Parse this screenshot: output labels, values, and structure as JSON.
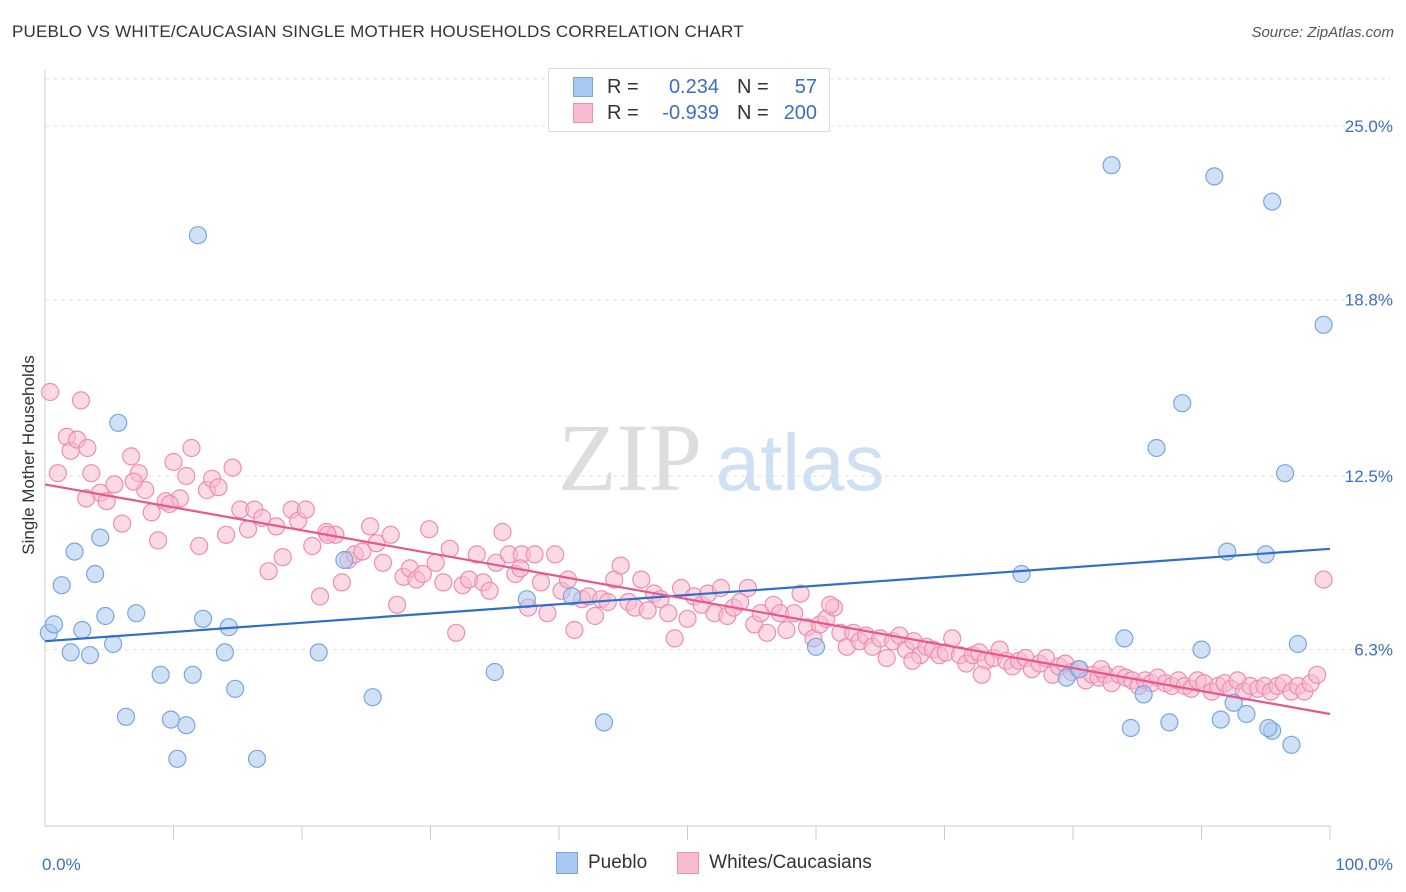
{
  "title": "PUEBLO VS WHITE/CAUCASIAN SINGLE MOTHER HOUSEHOLDS CORRELATION CHART",
  "source": "Source: ZipAtlas.com",
  "watermark": {
    "zip": "ZIP",
    "atlas": "atlas"
  },
  "legend": {
    "rows": [
      {
        "r_label": "R =",
        "r_value": "0.234",
        "n_label": "N =",
        "n_value": "57"
      },
      {
        "r_label": "R =",
        "r_value": "-0.939",
        "n_label": "N =",
        "n_value": "200"
      }
    ]
  },
  "bottom_legend": {
    "series1": "Pueblo",
    "series2": "Whites/Caucasians"
  },
  "colors": {
    "pueblo_fill": "#a9c8f0",
    "pueblo_stroke": "#7aa6de",
    "pueblo_line": "#2f6fcc",
    "white_fill": "#f7bcd0",
    "white_stroke": "#ee8db0",
    "white_line": "#e8578b",
    "tick_label": "#3b6fc4"
  },
  "chart_data": {
    "type": "scatter",
    "ylabel": "Single Mother Households",
    "xlabel": "",
    "xlim": [
      0,
      100
    ],
    "ylim": [
      0,
      27
    ],
    "x_tick_labels": [
      "0.0%",
      "100.0%"
    ],
    "y_ticks": [
      {
        "value": 6.3,
        "label": "6.3%"
      },
      {
        "value": 12.5,
        "label": "12.5%"
      },
      {
        "value": 18.8,
        "label": "18.8%"
      },
      {
        "value": 25.0,
        "label": "25.0%"
      }
    ],
    "series": [
      {
        "name": "Pueblo",
        "trend": {
          "x": [
            0,
            100
          ],
          "y": [
            6.6,
            9.9
          ]
        },
        "points": [
          [
            0.3,
            6.9
          ],
          [
            0.7,
            7.2
          ],
          [
            1.3,
            8.6
          ],
          [
            2.0,
            6.2
          ],
          [
            2.3,
            9.8
          ],
          [
            2.9,
            7.0
          ],
          [
            3.5,
            6.1
          ],
          [
            3.9,
            9.0
          ],
          [
            4.3,
            10.3
          ],
          [
            4.7,
            7.5
          ],
          [
            5.3,
            6.5
          ],
          [
            5.7,
            14.4
          ],
          [
            6.3,
            3.9
          ],
          [
            7.1,
            7.6
          ],
          [
            9.0,
            5.4
          ],
          [
            9.8,
            3.8
          ],
          [
            10.3,
            2.4
          ],
          [
            11.0,
            3.6
          ],
          [
            11.5,
            5.4
          ],
          [
            11.9,
            21.1
          ],
          [
            12.3,
            7.4
          ],
          [
            14.0,
            6.2
          ],
          [
            14.3,
            7.1
          ],
          [
            14.8,
            4.9
          ],
          [
            16.5,
            2.4
          ],
          [
            21.3,
            6.2
          ],
          [
            23.3,
            9.5
          ],
          [
            25.5,
            4.6
          ],
          [
            35.0,
            5.5
          ],
          [
            37.5,
            8.1
          ],
          [
            41.0,
            8.2
          ],
          [
            43.5,
            3.7
          ],
          [
            60.0,
            6.4
          ],
          [
            76.0,
            9.0
          ],
          [
            79.5,
            5.3
          ],
          [
            80.5,
            5.6
          ],
          [
            84.0,
            6.7
          ],
          [
            85.5,
            4.7
          ],
          [
            86.5,
            13.5
          ],
          [
            87.5,
            3.7
          ],
          [
            90.0,
            6.3
          ],
          [
            92.5,
            4.4
          ],
          [
            93.5,
            4.0
          ],
          [
            95.5,
            3.4
          ],
          [
            96.5,
            12.6
          ],
          [
            83.0,
            23.6
          ],
          [
            91.0,
            23.2
          ],
          [
            95.5,
            22.3
          ],
          [
            99.5,
            17.9
          ],
          [
            88.5,
            15.1
          ],
          [
            92.0,
            9.8
          ],
          [
            95.0,
            9.7
          ],
          [
            97.5,
            6.5
          ],
          [
            84.5,
            3.5
          ],
          [
            95.2,
            3.5
          ],
          [
            97.0,
            2.9
          ],
          [
            91.5,
            3.8
          ]
        ]
      },
      {
        "name": "Whites/Caucasians",
        "trend": {
          "x": [
            0,
            100
          ],
          "y": [
            12.2,
            4.0
          ]
        },
        "points": [
          [
            0.4,
            15.5
          ],
          [
            1.0,
            12.6
          ],
          [
            1.7,
            13.9
          ],
          [
            2.0,
            13.4
          ],
          [
            2.5,
            13.8
          ],
          [
            2.8,
            15.2
          ],
          [
            3.3,
            13.5
          ],
          [
            3.6,
            12.6
          ],
          [
            4.3,
            11.9
          ],
          [
            4.8,
            11.6
          ],
          [
            5.4,
            12.2
          ],
          [
            6.0,
            10.8
          ],
          [
            6.7,
            13.2
          ],
          [
            7.3,
            12.6
          ],
          [
            7.8,
            12.0
          ],
          [
            8.3,
            11.2
          ],
          [
            8.8,
            10.2
          ],
          [
            9.4,
            11.6
          ],
          [
            10.0,
            13.0
          ],
          [
            10.5,
            11.7
          ],
          [
            11.0,
            12.5
          ],
          [
            11.4,
            13.5
          ],
          [
            12.0,
            10.0
          ],
          [
            12.6,
            12.0
          ],
          [
            13.0,
            12.4
          ],
          [
            13.5,
            12.1
          ],
          [
            14.1,
            10.4
          ],
          [
            14.6,
            12.8
          ],
          [
            15.2,
            11.3
          ],
          [
            15.8,
            10.6
          ],
          [
            16.3,
            11.3
          ],
          [
            16.9,
            11.0
          ],
          [
            17.4,
            9.1
          ],
          [
            18.0,
            10.7
          ],
          [
            18.5,
            9.6
          ],
          [
            19.2,
            11.3
          ],
          [
            19.7,
            10.9
          ],
          [
            20.3,
            11.3
          ],
          [
            20.8,
            10.0
          ],
          [
            21.4,
            8.2
          ],
          [
            21.9,
            10.5
          ],
          [
            22.6,
            10.4
          ],
          [
            23.1,
            8.7
          ],
          [
            23.6,
            9.5
          ],
          [
            24.1,
            9.7
          ],
          [
            24.7,
            9.8
          ],
          [
            25.3,
            10.7
          ],
          [
            25.8,
            10.1
          ],
          [
            26.3,
            9.4
          ],
          [
            26.9,
            10.4
          ],
          [
            27.4,
            7.9
          ],
          [
            27.9,
            8.9
          ],
          [
            28.4,
            9.2
          ],
          [
            28.9,
            8.8
          ],
          [
            29.4,
            9.0
          ],
          [
            29.9,
            10.6
          ],
          [
            30.4,
            9.4
          ],
          [
            31.0,
            8.7
          ],
          [
            31.5,
            9.9
          ],
          [
            32.0,
            6.9
          ],
          [
            32.5,
            8.6
          ],
          [
            33.0,
            8.8
          ],
          [
            33.6,
            9.7
          ],
          [
            34.1,
            8.7
          ],
          [
            34.6,
            8.4
          ],
          [
            35.1,
            9.4
          ],
          [
            35.6,
            10.5
          ],
          [
            36.1,
            9.7
          ],
          [
            36.6,
            9.0
          ],
          [
            37.1,
            9.7
          ],
          [
            37.6,
            7.8
          ],
          [
            38.1,
            9.7
          ],
          [
            38.6,
            8.7
          ],
          [
            39.1,
            7.6
          ],
          [
            39.7,
            9.7
          ],
          [
            40.2,
            8.4
          ],
          [
            40.7,
            8.8
          ],
          [
            41.2,
            7.0
          ],
          [
            41.8,
            8.1
          ],
          [
            42.3,
            8.2
          ],
          [
            42.8,
            7.5
          ],
          [
            43.3,
            8.1
          ],
          [
            43.8,
            8.0
          ],
          [
            44.3,
            8.8
          ],
          [
            44.8,
            9.3
          ],
          [
            45.4,
            8.0
          ],
          [
            45.9,
            7.8
          ],
          [
            46.4,
            8.8
          ],
          [
            46.9,
            7.7
          ],
          [
            47.4,
            8.3
          ],
          [
            47.9,
            8.1
          ],
          [
            48.5,
            7.6
          ],
          [
            49.0,
            6.7
          ],
          [
            49.5,
            8.5
          ],
          [
            50.0,
            7.4
          ],
          [
            50.5,
            8.2
          ],
          [
            51.1,
            7.9
          ],
          [
            51.6,
            8.3
          ],
          [
            52.1,
            7.6
          ],
          [
            52.6,
            8.5
          ],
          [
            53.1,
            7.5
          ],
          [
            53.6,
            7.8
          ],
          [
            54.1,
            8.0
          ],
          [
            54.7,
            8.5
          ],
          [
            55.2,
            7.2
          ],
          [
            55.7,
            7.6
          ],
          [
            56.2,
            6.9
          ],
          [
            56.7,
            7.9
          ],
          [
            57.2,
            7.6
          ],
          [
            57.7,
            7.0
          ],
          [
            58.3,
            7.6
          ],
          [
            58.8,
            8.3
          ],
          [
            59.3,
            7.1
          ],
          [
            59.8,
            6.7
          ],
          [
            60.3,
            7.2
          ],
          [
            60.8,
            7.4
          ],
          [
            61.4,
            7.8
          ],
          [
            61.9,
            6.9
          ],
          [
            62.4,
            6.4
          ],
          [
            62.9,
            6.9
          ],
          [
            63.4,
            6.6
          ],
          [
            63.9,
            6.8
          ],
          [
            64.4,
            6.4
          ],
          [
            65.0,
            6.7
          ],
          [
            65.5,
            6.0
          ],
          [
            66.0,
            6.6
          ],
          [
            66.5,
            6.8
          ],
          [
            67.0,
            6.3
          ],
          [
            67.6,
            6.6
          ],
          [
            68.1,
            6.1
          ],
          [
            68.6,
            6.4
          ],
          [
            69.1,
            6.3
          ],
          [
            69.6,
            6.1
          ],
          [
            70.1,
            6.2
          ],
          [
            70.6,
            6.7
          ],
          [
            71.2,
            6.1
          ],
          [
            71.7,
            5.8
          ],
          [
            72.2,
            6.1
          ],
          [
            72.7,
            6.2
          ],
          [
            73.2,
            5.9
          ],
          [
            73.8,
            6.0
          ],
          [
            74.3,
            6.3
          ],
          [
            74.8,
            5.9
          ],
          [
            75.3,
            5.7
          ],
          [
            75.8,
            5.9
          ],
          [
            76.3,
            6.0
          ],
          [
            76.8,
            5.6
          ],
          [
            77.4,
            5.8
          ],
          [
            77.9,
            6.0
          ],
          [
            78.4,
            5.4
          ],
          [
            78.9,
            5.7
          ],
          [
            79.4,
            5.8
          ],
          [
            79.9,
            5.5
          ],
          [
            80.4,
            5.6
          ],
          [
            81.0,
            5.2
          ],
          [
            81.5,
            5.4
          ],
          [
            82.0,
            5.3
          ],
          [
            82.5,
            5.4
          ],
          [
            83.0,
            5.1
          ],
          [
            83.6,
            5.4
          ],
          [
            84.1,
            5.3
          ],
          [
            84.6,
            5.2
          ],
          [
            85.1,
            5.0
          ],
          [
            85.6,
            5.2
          ],
          [
            86.1,
            5.1
          ],
          [
            86.6,
            5.3
          ],
          [
            87.2,
            5.1
          ],
          [
            87.7,
            5.0
          ],
          [
            88.2,
            5.2
          ],
          [
            88.7,
            5.0
          ],
          [
            89.2,
            4.9
          ],
          [
            89.7,
            5.2
          ],
          [
            90.2,
            5.1
          ],
          [
            90.8,
            4.8
          ],
          [
            91.3,
            5.0
          ],
          [
            91.8,
            5.1
          ],
          [
            92.3,
            4.9
          ],
          [
            92.8,
            5.2
          ],
          [
            93.3,
            4.8
          ],
          [
            93.8,
            5.0
          ],
          [
            94.4,
            4.9
          ],
          [
            94.9,
            5.0
          ],
          [
            95.4,
            4.8
          ],
          [
            95.9,
            5.0
          ],
          [
            96.4,
            5.1
          ],
          [
            97.0,
            4.8
          ],
          [
            97.5,
            5.0
          ],
          [
            98.0,
            4.8
          ],
          [
            98.5,
            5.1
          ],
          [
            99.0,
            5.4
          ],
          [
            99.5,
            8.8
          ],
          [
            82.2,
            5.6
          ],
          [
            67.5,
            5.9
          ],
          [
            72.9,
            5.4
          ],
          [
            61.1,
            7.9
          ],
          [
            37.0,
            9.2
          ],
          [
            22.0,
            10.4
          ],
          [
            9.7,
            11.5
          ],
          [
            6.9,
            12.3
          ],
          [
            3.2,
            11.7
          ]
        ]
      }
    ]
  }
}
